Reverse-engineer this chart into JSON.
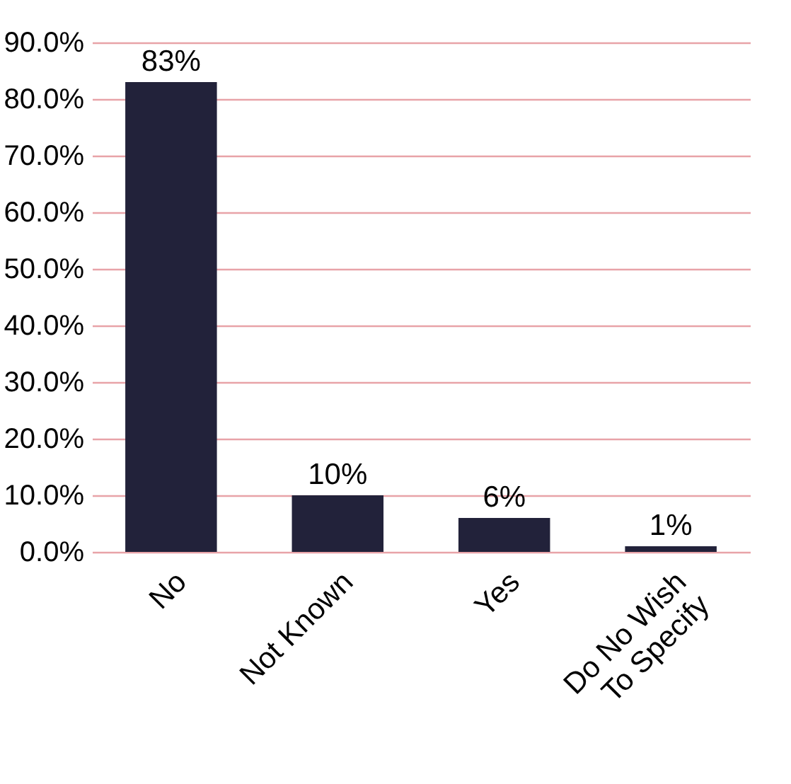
{
  "chart_data": {
    "type": "bar",
    "categories": [
      "No",
      "Not Known",
      "Yes",
      "Do No Wish To Specify"
    ],
    "values": [
      83,
      10,
      6,
      1
    ],
    "value_labels": [
      "83%",
      "10%",
      "6%",
      "1%"
    ],
    "color": "#22223a",
    "ylim": [
      0,
      90
    ],
    "yticks": [
      {
        "value": 0,
        "label": "0.0%"
      },
      {
        "value": 10,
        "label": "10.0%"
      },
      {
        "value": 20,
        "label": "20.0%"
      },
      {
        "value": 30,
        "label": "30.0%"
      },
      {
        "value": 40,
        "label": "40.0%"
      },
      {
        "value": 50,
        "label": "50.0%"
      },
      {
        "value": 60,
        "label": "60.0%"
      },
      {
        "value": 70,
        "label": "70.0%"
      },
      {
        "value": 80,
        "label": "80.0%"
      },
      {
        "value": 90,
        "label": "90.0%"
      }
    ],
    "grid": "y"
  }
}
